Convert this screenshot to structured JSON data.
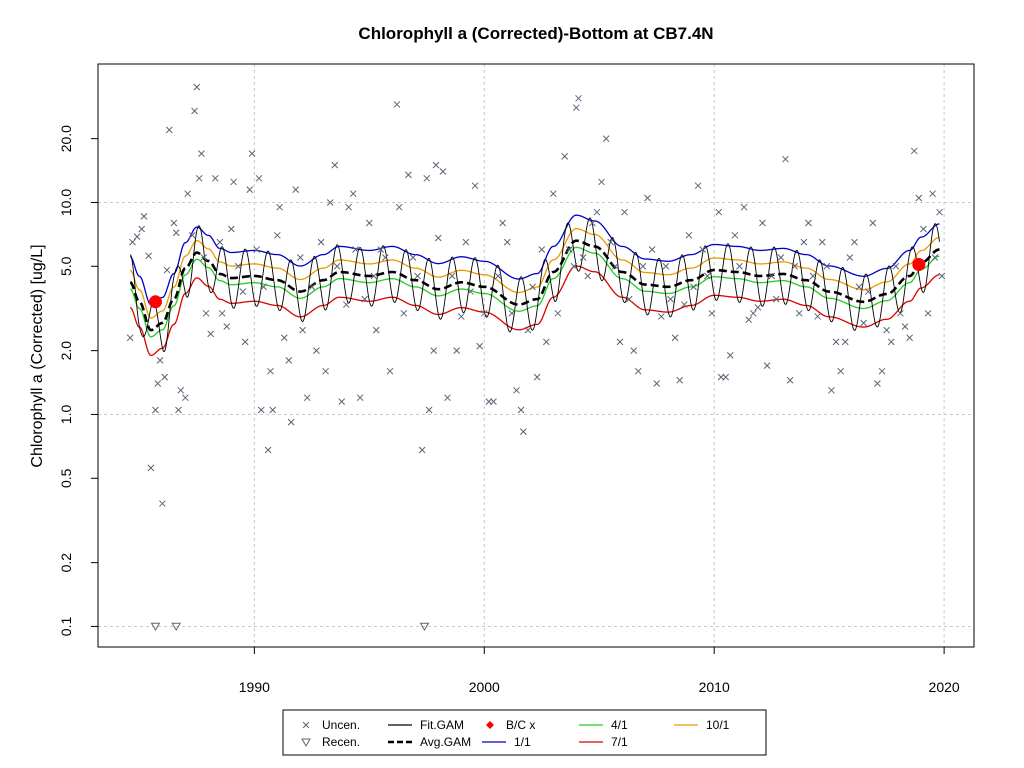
{
  "chart_data": {
    "type": "scatter",
    "title": "Chlorophyll a (Corrected)-Bottom at CB7.4N",
    "xlabel": "",
    "ylabel": "Chlorophyll a (Corrected) [ug/L]",
    "y_scale": "log",
    "xlim": [
      1983.2,
      2021.3
    ],
    "ylim": [
      0.08,
      45
    ],
    "x_ticks": [
      1990,
      2000,
      2010,
      2020
    ],
    "y_ticks": [
      0.1,
      0.2,
      0.5,
      1.0,
      2.0,
      5.0,
      10.0,
      20.0
    ],
    "y_tick_labels": [
      "0.1",
      "0.2",
      "0.5",
      "1.0",
      "2.0",
      "5.0",
      "10.0",
      "20.0"
    ],
    "grid": true,
    "legend_position": "bottom",
    "colors": {
      "uncen": "#5a6478",
      "fit_gam": "#000000",
      "avg_gam": "#000000",
      "bc": "#ff0000",
      "s1_1": "#0000cc",
      "s4_1": "#22cc22",
      "s7_1": "#dd0000",
      "s10_1": "#ee9900"
    },
    "legend": [
      {
        "key": "uncen",
        "label": "Uncen.",
        "symbol": "x"
      },
      {
        "key": "recen",
        "label": "Recen.",
        "symbol": "triangle"
      },
      {
        "key": "fit_gam",
        "label": "Fit.GAM",
        "symbol": "line"
      },
      {
        "key": "avg_gam",
        "label": "Avg.GAM",
        "symbol": "dash"
      },
      {
        "key": "bc",
        "label": "B/C x",
        "symbol": "diamond"
      },
      {
        "key": "s1_1",
        "label": "1/1",
        "symbol": "line"
      },
      {
        "key": "s4_1",
        "label": "4/1",
        "symbol": "line"
      },
      {
        "key": "s7_1",
        "label": "7/1",
        "symbol": "line"
      },
      {
        "key": "s10_1",
        "label": "10/1",
        "symbol": "line"
      }
    ],
    "avg_gam": [
      [
        1984.6,
        4.2
      ],
      [
        1985.0,
        3.4
      ],
      [
        1985.5,
        2.5
      ],
      [
        1986.0,
        2.7
      ],
      [
        1986.5,
        3.5
      ],
      [
        1987.0,
        4.9
      ],
      [
        1987.5,
        5.8
      ],
      [
        1988.0,
        5.3
      ],
      [
        1988.5,
        4.6
      ],
      [
        1989.0,
        4.4
      ],
      [
        1990.0,
        4.5
      ],
      [
        1991.0,
        4.3
      ],
      [
        1992.0,
        3.8
      ],
      [
        1993.0,
        4.3
      ],
      [
        1993.7,
        4.7
      ],
      [
        1995.0,
        4.5
      ],
      [
        1996.0,
        4.7
      ],
      [
        1997.0,
        4.3
      ],
      [
        1998.0,
        3.9
      ],
      [
        1999.0,
        4.2
      ],
      [
        2000.0,
        4.0
      ],
      [
        2001.5,
        3.3
      ],
      [
        2002.3,
        3.5
      ],
      [
        2003.0,
        4.7
      ],
      [
        2004.0,
        6.6
      ],
      [
        2004.8,
        6.2
      ],
      [
        2006.0,
        4.7
      ],
      [
        2007.0,
        4.1
      ],
      [
        2008.0,
        4.0
      ],
      [
        2009.0,
        4.3
      ],
      [
        2010.0,
        4.8
      ],
      [
        2011.0,
        4.7
      ],
      [
        2012.0,
        4.5
      ],
      [
        2013.0,
        4.6
      ],
      [
        2014.0,
        4.3
      ],
      [
        2015.0,
        3.8
      ],
      [
        2016.5,
        3.4
      ],
      [
        2017.5,
        3.7
      ],
      [
        2018.5,
        4.5
      ],
      [
        2019.0,
        5.2
      ],
      [
        2019.8,
        6.0
      ]
    ],
    "seasonal_factors": {
      "s1_1": 1.32,
      "s4_1": 0.93,
      "s7_1": 0.76,
      "s10_1": 1.14
    },
    "fit_gam": {
      "cycle_amplitude_factors": {
        "high": 1.35,
        "low": 0.72
      },
      "period_years": 1.0
    },
    "bc_points": [
      [
        1985.7,
        3.4
      ],
      [
        2018.9,
        5.1
      ]
    ],
    "recen_points": [
      [
        1985.7,
        0.1
      ],
      [
        1986.6,
        0.1
      ],
      [
        1997.4,
        0.1
      ]
    ],
    "uncen_points": [
      [
        1984.6,
        2.3
      ],
      [
        1984.7,
        6.5
      ],
      [
        1984.9,
        6.9
      ],
      [
        1985.1,
        7.5
      ],
      [
        1985.2,
        8.6
      ],
      [
        1985.4,
        5.6
      ],
      [
        1985.5,
        0.56
      ],
      [
        1985.7,
        1.05
      ],
      [
        1985.8,
        1.4
      ],
      [
        1985.9,
        1.8
      ],
      [
        1986.0,
        0.38
      ],
      [
        1986.1,
        1.5
      ],
      [
        1986.2,
        4.8
      ],
      [
        1986.3,
        22.0
      ],
      [
        1986.5,
        8.0
      ],
      [
        1986.6,
        7.2
      ],
      [
        1986.7,
        1.05
      ],
      [
        1986.8,
        1.3
      ],
      [
        1987.0,
        1.2
      ],
      [
        1987.1,
        11.0
      ],
      [
        1987.3,
        7.0
      ],
      [
        1987.4,
        27.0
      ],
      [
        1987.5,
        35.0
      ],
      [
        1987.6,
        13.0
      ],
      [
        1987.7,
        17.0
      ],
      [
        1987.8,
        5.5
      ],
      [
        1987.9,
        3.0
      ],
      [
        1988.1,
        2.4
      ],
      [
        1988.3,
        13.0
      ],
      [
        1988.5,
        6.5
      ],
      [
        1988.6,
        3.0
      ],
      [
        1988.8,
        2.6
      ],
      [
        1989.0,
        7.5
      ],
      [
        1989.1,
        12.5
      ],
      [
        1989.3,
        5.0
      ],
      [
        1989.5,
        3.8
      ],
      [
        1989.6,
        2.2
      ],
      [
        1989.8,
        11.5
      ],
      [
        1989.9,
        17.0
      ],
      [
        1990.1,
        6.0
      ],
      [
        1990.2,
        13.0
      ],
      [
        1990.3,
        1.05
      ],
      [
        1990.4,
        4.0
      ],
      [
        1990.6,
        0.68
      ],
      [
        1990.7,
        1.6
      ],
      [
        1990.8,
        1.05
      ],
      [
        1991.0,
        7.0
      ],
      [
        1991.1,
        9.5
      ],
      [
        1991.3,
        2.3
      ],
      [
        1991.5,
        1.8
      ],
      [
        1991.6,
        0.92
      ],
      [
        1991.8,
        11.5
      ],
      [
        1992.0,
        5.5
      ],
      [
        1992.1,
        2.5
      ],
      [
        1992.3,
        1.2
      ],
      [
        1992.5,
        4.0
      ],
      [
        1992.7,
        2.0
      ],
      [
        1992.9,
        6.5
      ],
      [
        1993.1,
        1.6
      ],
      [
        1993.3,
        10.0
      ],
      [
        1993.5,
        15.0
      ],
      [
        1993.6,
        5.0
      ],
      [
        1993.8,
        1.15
      ],
      [
        1994.0,
        3.3
      ],
      [
        1994.1,
        9.5
      ],
      [
        1994.3,
        11.0
      ],
      [
        1994.4,
        6.0
      ],
      [
        1994.6,
        1.2
      ],
      [
        1994.8,
        3.5
      ],
      [
        1995.0,
        8.0
      ],
      [
        1995.2,
        4.5
      ],
      [
        1995.3,
        2.5
      ],
      [
        1995.5,
        6.0
      ],
      [
        1995.7,
        5.5
      ],
      [
        1995.9,
        1.6
      ],
      [
        1996.2,
        29.0
      ],
      [
        1996.3,
        9.5
      ],
      [
        1996.5,
        3.0
      ],
      [
        1996.7,
        13.5
      ],
      [
        1996.9,
        5.5
      ],
      [
        1997.1,
        4.5
      ],
      [
        1997.3,
        0.68
      ],
      [
        1997.5,
        13.0
      ],
      [
        1997.6,
        1.05
      ],
      [
        1997.8,
        2.0
      ],
      [
        1997.9,
        15.0
      ],
      [
        1998.0,
        6.8
      ],
      [
        1998.2,
        14.0
      ],
      [
        1998.4,
        1.2
      ],
      [
        1998.6,
        4.5
      ],
      [
        1998.8,
        2.0
      ],
      [
        1999.0,
        2.9
      ],
      [
        1999.2,
        6.5
      ],
      [
        1999.4,
        3.8
      ],
      [
        1999.6,
        12.0
      ],
      [
        1999.8,
        2.1
      ],
      [
        2000.0,
        3.0
      ],
      [
        2000.2,
        1.15
      ],
      [
        2000.4,
        1.15
      ],
      [
        2000.6,
        4.5
      ],
      [
        2000.8,
        8.0
      ],
      [
        2001.0,
        6.5
      ],
      [
        2001.2,
        3.0
      ],
      [
        2001.4,
        1.3
      ],
      [
        2001.6,
        1.05
      ],
      [
        2001.7,
        0.83
      ],
      [
        2001.9,
        2.5
      ],
      [
        2002.1,
        4.0
      ],
      [
        2002.3,
        1.5
      ],
      [
        2002.5,
        6.0
      ],
      [
        2002.7,
        2.2
      ],
      [
        2003.0,
        11.0
      ],
      [
        2003.2,
        3.0
      ],
      [
        2003.5,
        16.5
      ],
      [
        2003.7,
        6.0
      ],
      [
        2003.9,
        5.0
      ],
      [
        2004.0,
        28.0
      ],
      [
        2004.1,
        31.0
      ],
      [
        2004.3,
        5.5
      ],
      [
        2004.5,
        4.5
      ],
      [
        2004.7,
        8.0
      ],
      [
        2004.9,
        9.0
      ],
      [
        2005.1,
        12.5
      ],
      [
        2005.3,
        20.0
      ],
      [
        2005.5,
        6.5
      ],
      [
        2005.7,
        5.0
      ],
      [
        2005.9,
        2.2
      ],
      [
        2006.1,
        9.0
      ],
      [
        2006.3,
        3.5
      ],
      [
        2006.5,
        2.0
      ],
      [
        2006.7,
        1.6
      ],
      [
        2006.9,
        5.0
      ],
      [
        2007.1,
        10.5
      ],
      [
        2007.3,
        6.0
      ],
      [
        2007.5,
        1.4
      ],
      [
        2007.7,
        2.9
      ],
      [
        2007.9,
        5.0
      ],
      [
        2008.1,
        3.5
      ],
      [
        2008.3,
        2.3
      ],
      [
        2008.5,
        1.45
      ],
      [
        2008.7,
        3.3
      ],
      [
        2008.9,
        7.0
      ],
      [
        2009.1,
        4.0
      ],
      [
        2009.3,
        12.0
      ],
      [
        2009.5,
        6.0
      ],
      [
        2009.7,
        4.5
      ],
      [
        2009.9,
        3.0
      ],
      [
        2010.2,
        9.0
      ],
      [
        2010.3,
        1.5
      ],
      [
        2010.5,
        1.5
      ],
      [
        2010.7,
        1.9
      ],
      [
        2010.9,
        7.0
      ],
      [
        2011.1,
        5.0
      ],
      [
        2011.3,
        9.5
      ],
      [
        2011.5,
        2.8
      ],
      [
        2011.7,
        3.0
      ],
      [
        2011.9,
        3.2
      ],
      [
        2012.1,
        8.0
      ],
      [
        2012.3,
        1.7
      ],
      [
        2012.5,
        4.5
      ],
      [
        2012.7,
        3.5
      ],
      [
        2012.9,
        5.5
      ],
      [
        2013.1,
        16.0
      ],
      [
        2013.3,
        1.45
      ],
      [
        2013.5,
        5.0
      ],
      [
        2013.7,
        3.0
      ],
      [
        2013.9,
        6.5
      ],
      [
        2014.1,
        8.0
      ],
      [
        2014.3,
        4.5
      ],
      [
        2014.5,
        2.9
      ],
      [
        2014.7,
        6.5
      ],
      [
        2014.9,
        5.0
      ],
      [
        2015.1,
        1.3
      ],
      [
        2015.3,
        2.2
      ],
      [
        2015.5,
        1.6
      ],
      [
        2015.7,
        2.2
      ],
      [
        2015.9,
        5.5
      ],
      [
        2016.1,
        6.5
      ],
      [
        2016.3,
        4.0
      ],
      [
        2016.5,
        2.7
      ],
      [
        2016.7,
        3.8
      ],
      [
        2016.9,
        8.0
      ],
      [
        2017.1,
        1.4
      ],
      [
        2017.3,
        1.6
      ],
      [
        2017.5,
        2.5
      ],
      [
        2017.7,
        2.2
      ],
      [
        2017.9,
        5.0
      ],
      [
        2018.1,
        3.0
      ],
      [
        2018.3,
        2.6
      ],
      [
        2018.5,
        2.3
      ],
      [
        2018.7,
        17.5
      ],
      [
        2018.9,
        10.5
      ],
      [
        2019.1,
        7.5
      ],
      [
        2019.3,
        3.0
      ],
      [
        2019.5,
        11.0
      ],
      [
        2019.6,
        5.5
      ],
      [
        2019.8,
        9.0
      ],
      [
        2019.9,
        4.5
      ]
    ]
  }
}
